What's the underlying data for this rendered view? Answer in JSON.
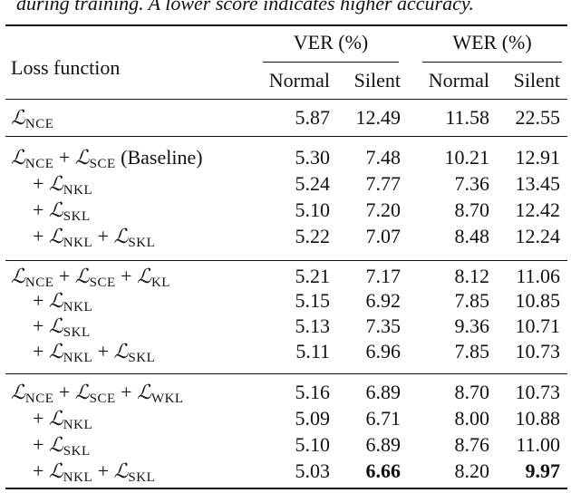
{
  "caption": "during training. A lower score indicates higher accuracy.",
  "header": {
    "loss_function": "Loss function",
    "ver": "VER (%)",
    "wer": "WER (%)",
    "normal": "Normal",
    "silent": "Silent"
  },
  "symbols": {
    "L": "ℒ",
    "plus": "+"
  },
  "subscripts": {
    "nce": "NCE",
    "sce": "SCE",
    "kl": "KL",
    "wkl": "WKL",
    "nkl": "NKL",
    "skl": "SKL"
  },
  "labels": {
    "baseline": "(Baseline)"
  },
  "rows": [
    {
      "ver_normal": "5.87",
      "ver_silent": "12.49",
      "wer_normal": "11.58",
      "wer_silent": "22.55"
    },
    {
      "ver_normal": "5.30",
      "ver_silent": "7.48",
      "wer_normal": "10.21",
      "wer_silent": "12.91"
    },
    {
      "ver_normal": "5.24",
      "ver_silent": "7.77",
      "wer_normal": "7.36",
      "wer_silent": "13.45"
    },
    {
      "ver_normal": "5.10",
      "ver_silent": "7.20",
      "wer_normal": "8.70",
      "wer_silent": "12.42"
    },
    {
      "ver_normal": "5.22",
      "ver_silent": "7.07",
      "wer_normal": "8.48",
      "wer_silent": "12.24"
    },
    {
      "ver_normal": "5.21",
      "ver_silent": "7.17",
      "wer_normal": "8.12",
      "wer_silent": "11.06"
    },
    {
      "ver_normal": "5.15",
      "ver_silent": "6.92",
      "wer_normal": "7.85",
      "wer_silent": "10.85"
    },
    {
      "ver_normal": "5.13",
      "ver_silent": "7.35",
      "wer_normal": "9.36",
      "wer_silent": "10.71"
    },
    {
      "ver_normal": "5.11",
      "ver_silent": "6.96",
      "wer_normal": "7.85",
      "wer_silent": "10.73"
    },
    {
      "ver_normal": "5.16",
      "ver_silent": "6.89",
      "wer_normal": "8.70",
      "wer_silent": "10.73"
    },
    {
      "ver_normal": "5.09",
      "ver_silent": "6.71",
      "wer_normal": "8.00",
      "wer_silent": "10.88"
    },
    {
      "ver_normal": "5.10",
      "ver_silent": "6.89",
      "wer_normal": "8.76",
      "wer_silent": "11.00"
    },
    {
      "ver_normal": "5.03",
      "ver_silent": "6.66",
      "wer_normal": "8.20",
      "wer_silent": "9.97"
    }
  ]
}
